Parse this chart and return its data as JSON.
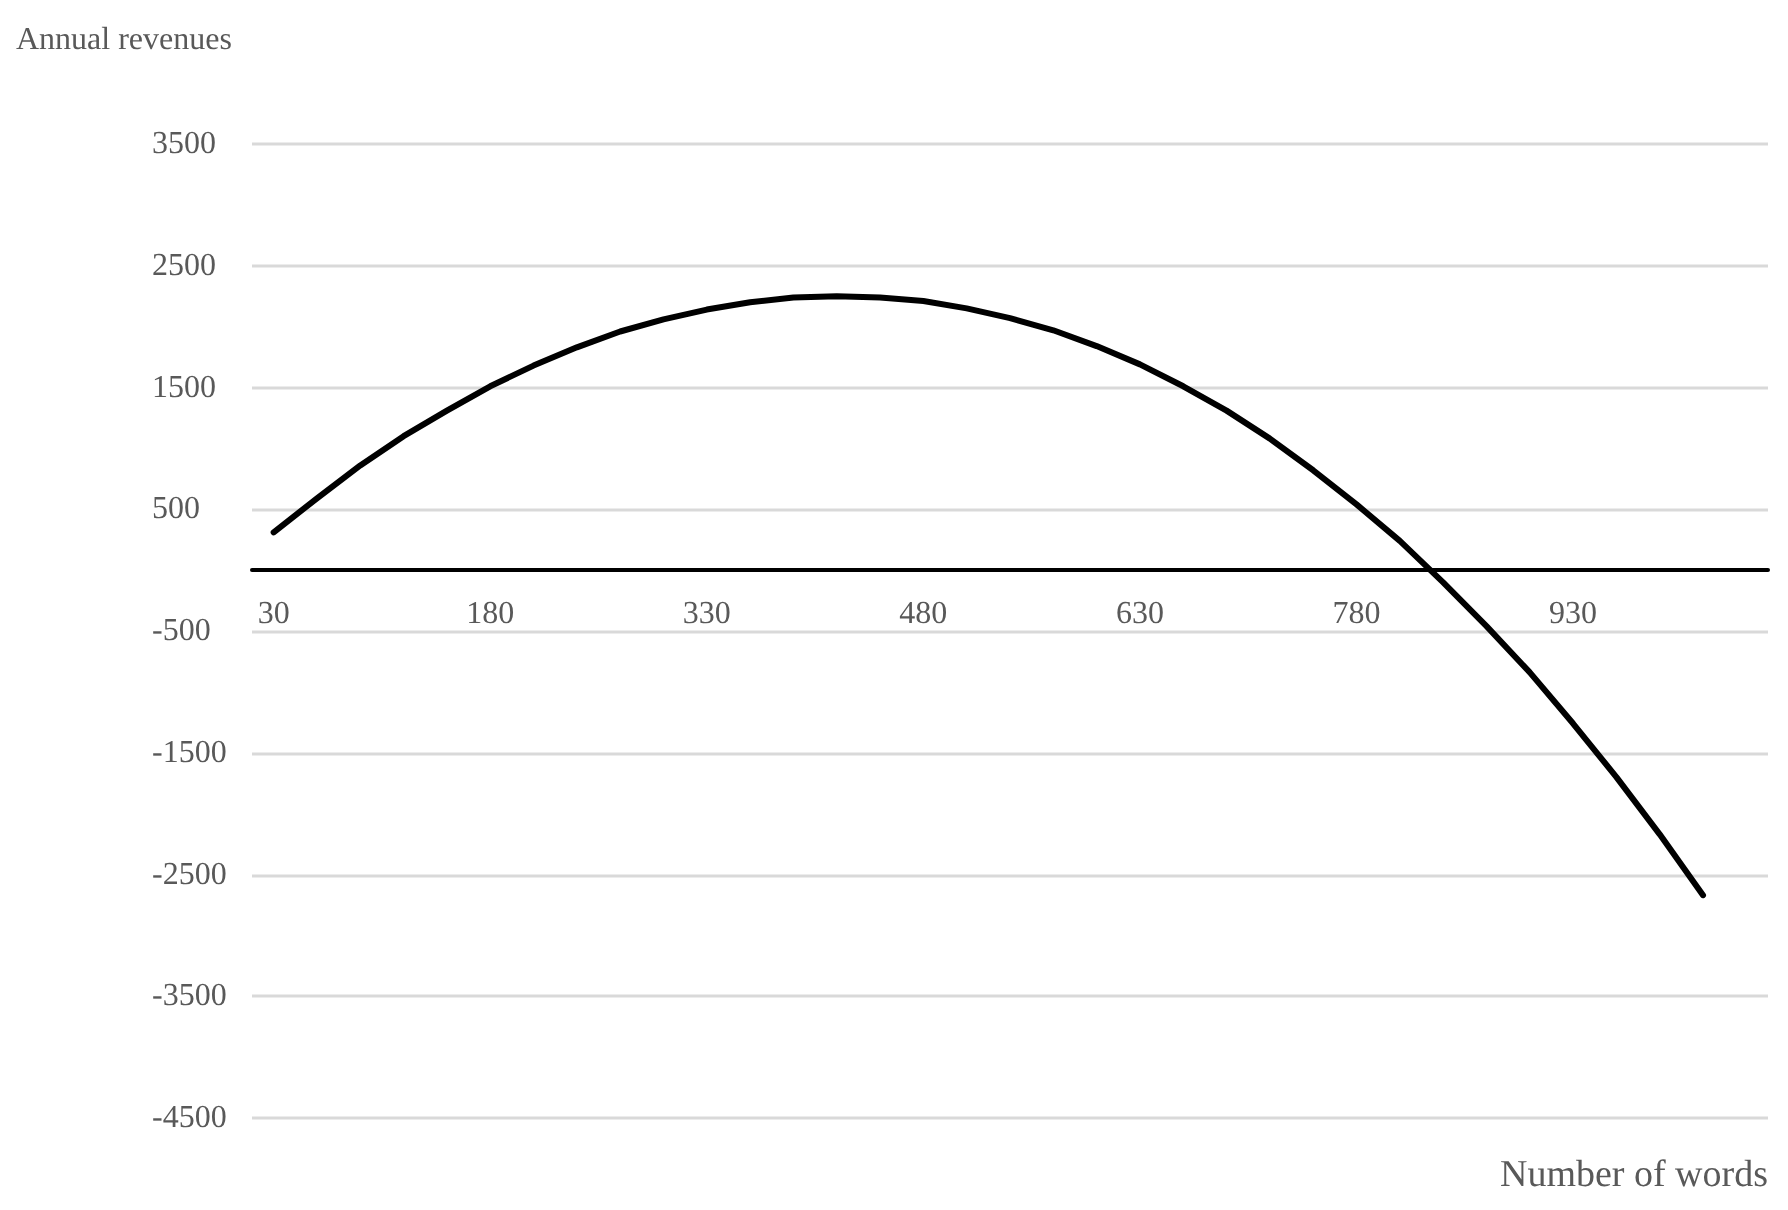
{
  "chart_data": {
    "type": "line",
    "xlabel": "Number of words",
    "ylabel": "Annual revenues",
    "x": [
      30,
      60,
      90,
      120,
      150,
      180,
      210,
      240,
      270,
      300,
      330,
      360,
      390,
      420,
      450,
      480,
      510,
      540,
      570,
      600,
      630,
      660,
      690,
      720,
      750,
      780,
      810,
      840,
      870,
      900,
      930,
      960,
      990,
      1020
    ],
    "series": [
      {
        "color": "#000000",
        "values": [
          310,
          590,
          860,
          1100,
          1310,
          1510,
          1680,
          1830,
          1960,
          2060,
          2140,
          2200,
          2240,
          2250,
          2240,
          2210,
          2150,
          2070,
          1970,
          1840,
          1690,
          1510,
          1310,
          1080,
          820,
          540,
          240,
          -100,
          -460,
          -840,
          -1260,
          -1700,
          -2170,
          -2670
        ]
      }
    ],
    "xlim": [
      15,
      1065
    ],
    "xticks": [
      30,
      180,
      330,
      480,
      630,
      780,
      930
    ],
    "ylim": [
      -4500,
      3500
    ],
    "yticks": [
      -4500,
      -3500,
      -2500,
      -1500,
      -500,
      500,
      1500,
      2500,
      3500
    ],
    "grid": "y",
    "marker": "none",
    "line_style": "solid"
  }
}
